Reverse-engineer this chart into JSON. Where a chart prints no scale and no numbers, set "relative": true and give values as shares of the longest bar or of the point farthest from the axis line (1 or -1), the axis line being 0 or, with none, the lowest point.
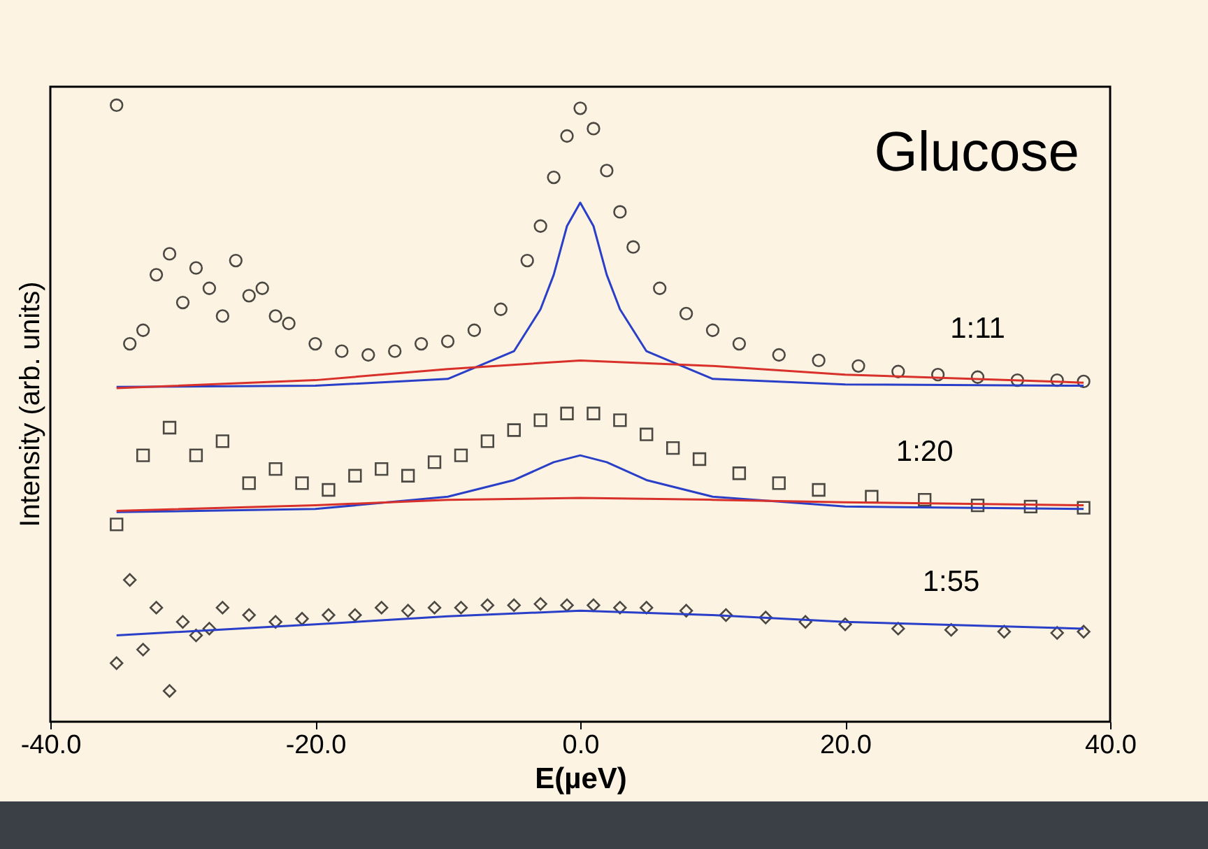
{
  "chart_data": {
    "type": "scatter",
    "relative": true,
    "xlabel": "E(µeV)",
    "ylabel": "Intensity (arb. units)",
    "annotations": [
      "Glucose"
    ],
    "xlim": [
      -40,
      40
    ],
    "xticks": [
      {
        "value": -40,
        "label": "-40.0"
      },
      {
        "value": -20,
        "label": "-20.0"
      },
      {
        "value": 0,
        "label": "0.0"
      },
      {
        "value": 20,
        "label": "20.0"
      },
      {
        "value": 40,
        "label": "40.0"
      }
    ],
    "series": [
      {
        "name": "1:11",
        "marker": "circle",
        "color": "#000000",
        "x": [
          -35,
          -34,
          -33,
          -32,
          -31,
          -30,
          -29,
          -28,
          -27,
          -26,
          -25,
          -24,
          -23,
          -22,
          -20,
          -18,
          -16,
          -14,
          -12,
          -10,
          -8,
          -6,
          -4,
          -3,
          -2,
          -1,
          0,
          1,
          2,
          3,
          4,
          6,
          8,
          10,
          12,
          15,
          18,
          21,
          24,
          27,
          30,
          33,
          36,
          38
        ],
        "values": [
          1.0,
          0.613,
          0.635,
          0.725,
          0.759,
          0.68,
          0.736,
          0.703,
          0.658,
          0.748,
          0.691,
          0.703,
          0.658,
          0.646,
          0.613,
          0.601,
          0.595,
          0.601,
          0.613,
          0.617,
          0.635,
          0.669,
          0.748,
          0.804,
          0.883,
          0.95,
          0.995,
          0.962,
          0.894,
          0.827,
          0.77,
          0.703,
          0.662,
          0.635,
          0.613,
          0.595,
          0.586,
          0.577,
          0.568,
          0.563,
          0.559,
          0.554,
          0.554,
          0.552
        ]
      },
      {
        "type": "line",
        "color": "#2a3fc8",
        "x": [
          -35,
          -20,
          -10,
          -5,
          -3,
          -2,
          -1,
          0,
          1,
          2,
          3,
          5,
          10,
          20,
          38
        ],
        "values": [
          0.543,
          0.545,
          0.556,
          0.601,
          0.669,
          0.725,
          0.804,
          0.842,
          0.804,
          0.725,
          0.669,
          0.601,
          0.556,
          0.547,
          0.545
        ]
      },
      {
        "type": "line",
        "color": "#d8302a",
        "x": [
          -35,
          -20,
          -10,
          0,
          10,
          20,
          38
        ],
        "values": [
          0.541,
          0.554,
          0.572,
          0.586,
          0.577,
          0.563,
          0.55
        ]
      },
      {
        "name": "1:20",
        "marker": "square",
        "color": "#000000",
        "x": [
          -35,
          -33,
          -31,
          -29,
          -27,
          -25,
          -23,
          -21,
          -19,
          -17,
          -15,
          -13,
          -11,
          -9,
          -7,
          -5,
          -3,
          -1,
          1,
          3,
          5,
          7,
          9,
          12,
          15,
          18,
          22,
          26,
          30,
          34,
          38
        ],
        "values": [
          0.32,
          0.432,
          0.477,
          0.432,
          0.455,
          0.387,
          0.41,
          0.387,
          0.376,
          0.399,
          0.41,
          0.399,
          0.421,
          0.432,
          0.455,
          0.473,
          0.489,
          0.5,
          0.5,
          0.489,
          0.466,
          0.444,
          0.426,
          0.403,
          0.387,
          0.376,
          0.365,
          0.36,
          0.351,
          0.349,
          0.347
        ]
      },
      {
        "type": "line",
        "color": "#2a3fc8",
        "x": [
          -35,
          -20,
          -10,
          -5,
          -2,
          0,
          2,
          5,
          10,
          20,
          38
        ],
        "values": [
          0.34,
          0.345,
          0.365,
          0.392,
          0.421,
          0.432,
          0.421,
          0.392,
          0.365,
          0.349,
          0.345
        ]
      },
      {
        "type": "line",
        "color": "#d8302a",
        "x": [
          -35,
          -20,
          -10,
          0,
          10,
          20,
          38
        ],
        "values": [
          0.342,
          0.351,
          0.36,
          0.363,
          0.36,
          0.356,
          0.351
        ]
      },
      {
        "name": "1:55",
        "marker": "diamond",
        "color": "#000000",
        "x": [
          -35,
          -34,
          -33,
          -32,
          -31,
          -30,
          -29,
          -28,
          -27,
          -25,
          -23,
          -21,
          -19,
          -17,
          -15,
          -13,
          -11,
          -9,
          -7,
          -5,
          -3,
          -1,
          1,
          3,
          5,
          8,
          11,
          14,
          17,
          20,
          24,
          28,
          32,
          36,
          38
        ],
        "values": [
          0.095,
          0.23,
          0.117,
          0.185,
          0.05,
          0.162,
          0.14,
          0.151,
          0.185,
          0.173,
          0.162,
          0.167,
          0.173,
          0.173,
          0.185,
          0.18,
          0.185,
          0.185,
          0.189,
          0.189,
          0.191,
          0.189,
          0.189,
          0.185,
          0.185,
          0.18,
          0.173,
          0.169,
          0.162,
          0.158,
          0.151,
          0.149,
          0.146,
          0.144,
          0.146
        ]
      },
      {
        "type": "line",
        "color": "#2a3fc8",
        "x": [
          -35,
          -20,
          -10,
          0,
          10,
          20,
          38
        ],
        "values": [
          0.14,
          0.158,
          0.171,
          0.18,
          0.173,
          0.162,
          0.151
        ]
      }
    ]
  }
}
